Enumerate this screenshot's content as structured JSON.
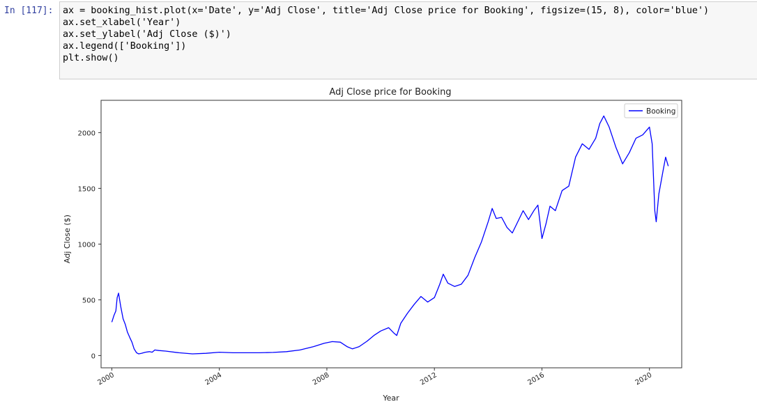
{
  "cell": {
    "prompt": "In [117]:",
    "code_lines": [
      "ax = booking_hist.plot(x='Date', y='Adj Close', title='Adj Close price for Booking', figsize=(15, 8), color='blue')",
      "ax.set_xlabel('Year')",
      "ax.set_ylabel('Adj Close ($)')",
      "ax.legend(['Booking'])",
      "plt.show()"
    ]
  },
  "chart_data": {
    "type": "line",
    "title": "Adj Close price for Booking",
    "xlabel": "Year",
    "ylabel": "Adj Close ($)",
    "xlim": [
      1999.6,
      2021.2
    ],
    "ylim": [
      -110,
      2290
    ],
    "x_ticks": [
      2000,
      2004,
      2008,
      2012,
      2016,
      2020
    ],
    "y_ticks": [
      0,
      500,
      1000,
      1500,
      2000
    ],
    "legend_position": "top-right",
    "grid": false,
    "series": [
      {
        "name": "Booking",
        "color": "#0000ff",
        "points": [
          [
            2000.0,
            300
          ],
          [
            2000.08,
            360
          ],
          [
            2000.15,
            400
          ],
          [
            2000.2,
            520
          ],
          [
            2000.25,
            560
          ],
          [
            2000.33,
            440
          ],
          [
            2000.42,
            330
          ],
          [
            2000.5,
            280
          ],
          [
            2000.58,
            210
          ],
          [
            2000.67,
            160
          ],
          [
            2000.75,
            120
          ],
          [
            2000.83,
            60
          ],
          [
            2000.92,
            25
          ],
          [
            2001.0,
            15
          ],
          [
            2001.1,
            20
          ],
          [
            2001.25,
            30
          ],
          [
            2001.4,
            35
          ],
          [
            2001.5,
            30
          ],
          [
            2001.6,
            50
          ],
          [
            2001.75,
            45
          ],
          [
            2002.0,
            40
          ],
          [
            2002.5,
            25
          ],
          [
            2003.0,
            15
          ],
          [
            2003.5,
            20
          ],
          [
            2004.0,
            30
          ],
          [
            2004.5,
            25
          ],
          [
            2005.0,
            25
          ],
          [
            2005.5,
            25
          ],
          [
            2006.0,
            28
          ],
          [
            2006.5,
            35
          ],
          [
            2007.0,
            50
          ],
          [
            2007.5,
            80
          ],
          [
            2007.9,
            110
          ],
          [
            2008.2,
            125
          ],
          [
            2008.5,
            120
          ],
          [
            2008.75,
            80
          ],
          [
            2008.95,
            60
          ],
          [
            2009.2,
            80
          ],
          [
            2009.5,
            130
          ],
          [
            2009.75,
            180
          ],
          [
            2010.0,
            220
          ],
          [
            2010.3,
            250
          ],
          [
            2010.5,
            200
          ],
          [
            2010.6,
            180
          ],
          [
            2010.75,
            290
          ],
          [
            2011.0,
            380
          ],
          [
            2011.25,
            460
          ],
          [
            2011.5,
            530
          ],
          [
            2011.75,
            480
          ],
          [
            2012.0,
            520
          ],
          [
            2012.2,
            640
          ],
          [
            2012.33,
            730
          ],
          [
            2012.5,
            650
          ],
          [
            2012.75,
            620
          ],
          [
            2013.0,
            640
          ],
          [
            2013.25,
            720
          ],
          [
            2013.5,
            880
          ],
          [
            2013.75,
            1020
          ],
          [
            2014.0,
            1200
          ],
          [
            2014.15,
            1320
          ],
          [
            2014.3,
            1230
          ],
          [
            2014.5,
            1240
          ],
          [
            2014.7,
            1150
          ],
          [
            2014.9,
            1100
          ],
          [
            2015.1,
            1200
          ],
          [
            2015.3,
            1300
          ],
          [
            2015.5,
            1220
          ],
          [
            2015.7,
            1300
          ],
          [
            2015.85,
            1350
          ],
          [
            2016.0,
            1050
          ],
          [
            2016.15,
            1180
          ],
          [
            2016.3,
            1340
          ],
          [
            2016.5,
            1300
          ],
          [
            2016.75,
            1480
          ],
          [
            2017.0,
            1520
          ],
          [
            2017.25,
            1780
          ],
          [
            2017.5,
            1900
          ],
          [
            2017.75,
            1850
          ],
          [
            2018.0,
            1950
          ],
          [
            2018.15,
            2080
          ],
          [
            2018.3,
            2150
          ],
          [
            2018.5,
            2050
          ],
          [
            2018.75,
            1870
          ],
          [
            2019.0,
            1720
          ],
          [
            2019.25,
            1820
          ],
          [
            2019.5,
            1950
          ],
          [
            2019.75,
            1980
          ],
          [
            2020.0,
            2050
          ],
          [
            2020.1,
            1900
          ],
          [
            2020.2,
            1300
          ],
          [
            2020.25,
            1200
          ],
          [
            2020.35,
            1450
          ],
          [
            2020.5,
            1650
          ],
          [
            2020.6,
            1780
          ],
          [
            2020.7,
            1700
          ]
        ]
      }
    ]
  }
}
